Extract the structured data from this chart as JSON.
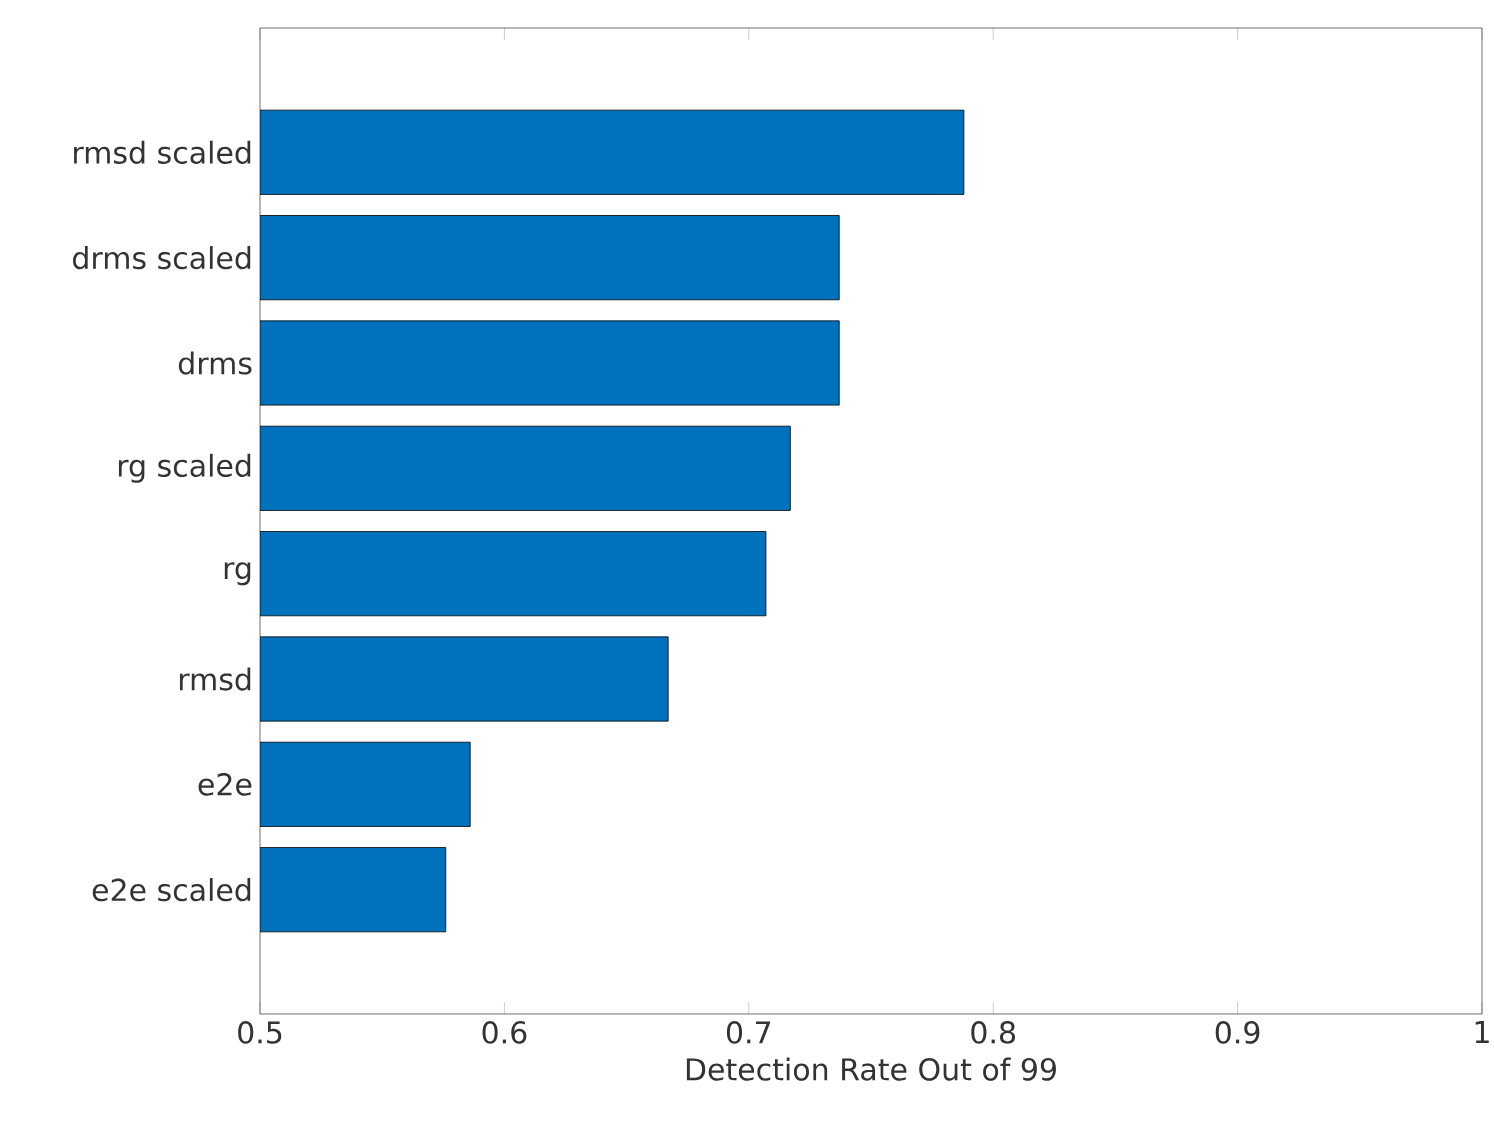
{
  "chart_data": {
    "type": "bar",
    "orientation": "horizontal",
    "xlabel": "Detection Rate Out of 99",
    "categories": [
      "rmsd scaled",
      "drms scaled",
      "drms",
      "rg scaled",
      "rg",
      "rmsd",
      "e2e",
      "e2e scaled"
    ],
    "values": [
      0.788,
      0.737,
      0.737,
      0.717,
      0.707,
      0.667,
      0.586,
      0.576
    ],
    "color": "#0072bd",
    "xlim": [
      0.5,
      1
    ],
    "xticks": [
      0.5,
      0.6,
      0.7,
      0.8,
      0.9,
      1
    ],
    "grid": false
  }
}
